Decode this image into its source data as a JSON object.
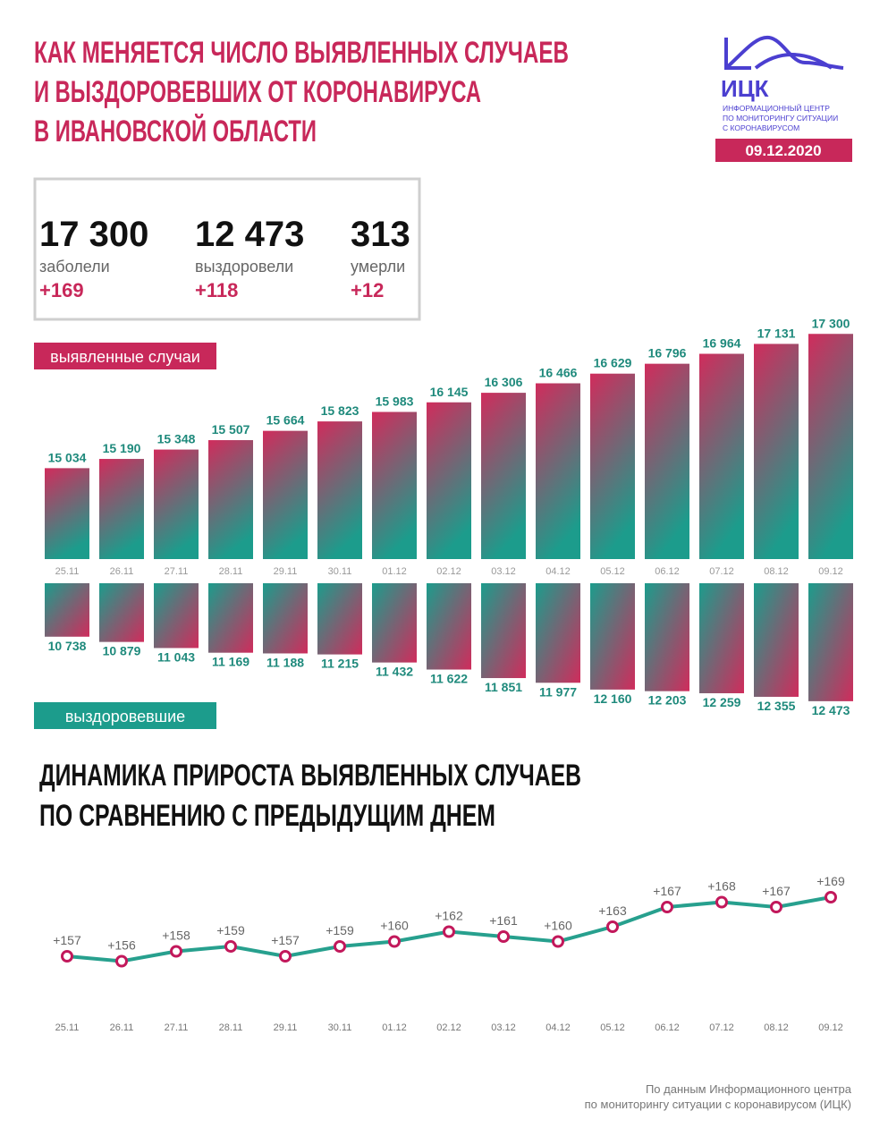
{
  "header": {
    "title": [
      "КАК МЕНЯЕТСЯ ЧИСЛО ВЫЯВЛЕННЫХ СЛУЧАЕВ",
      "И ВЫЗДОРОВЕВШИХ ОТ КОРОНАВИРУСА",
      "В ИВАНОВСКОЙ ОБЛАСТИ"
    ],
    "date": "09.12.2020"
  },
  "logo": {
    "abbr": "ИЦК",
    "lines": [
      "ИНФОРМАЦИОННЫЙ ЦЕНТР",
      "ПО МОНИТОРИНГУ СИТУАЦИИ",
      "С КОРОНАВИРУСОМ"
    ]
  },
  "summary": [
    {
      "value": "17 300",
      "label": "заболели",
      "delta": "+169"
    },
    {
      "value": "12 473",
      "label": "выздоровели",
      "delta": "+118"
    },
    {
      "value": "313",
      "label": "умерли",
      "delta": "+12"
    }
  ],
  "chart_data": [
    {
      "type": "bar",
      "label": "выявленные случаи",
      "label_color": "#c8285a",
      "colors": [
        "#d02c5c",
        "#1c9c8c"
      ],
      "categories": [
        "25.11",
        "26.11",
        "27.11",
        "28.11",
        "29.11",
        "30.11",
        "01.12",
        "02.12",
        "03.12",
        "04.12",
        "05.12",
        "06.12",
        "07.12",
        "08.12",
        "09.12"
      ],
      "values": [
        15034,
        15190,
        15348,
        15507,
        15664,
        15823,
        15983,
        16145,
        16306,
        16466,
        16629,
        16796,
        16964,
        17131,
        17300
      ],
      "value_labels": [
        "15 034",
        "15 190",
        "15 348",
        "15 507",
        "15 664",
        "15 823",
        "15 983",
        "16 145",
        "16 306",
        "16 466",
        "16 629",
        "16 796",
        "16 964",
        "17 131",
        "17 300"
      ],
      "ylim": [
        13500,
        17500
      ]
    },
    {
      "type": "bar",
      "label": "выздоровевшие",
      "label_color": "#1c9c8c",
      "colors": [
        "#1c9c8c",
        "#d02c5c"
      ],
      "yinvert": true,
      "values": [
        10738,
        10879,
        11043,
        11169,
        11188,
        11215,
        11432,
        11622,
        11851,
        11977,
        12160,
        12203,
        12259,
        12355,
        12473
      ],
      "value_labels": [
        "10 738",
        "10 879",
        "11 043",
        "11 169",
        "11 188",
        "11 215",
        "11 432",
        "11 622",
        "11 851",
        "11 977",
        "12 160",
        "12 203",
        "12 259",
        "12 355",
        "12 473"
      ],
      "ylim": [
        9300,
        12500
      ]
    },
    {
      "type": "line",
      "title": [
        "ДИНАМИКА ПРИРОСТА ВЫЯВЛЕННЫХ СЛУЧАЕВ",
        "ПО СРАВНЕНИЮ С ПРЕДЫДУЩИМ ДНЕМ"
      ],
      "color": "#27a08e",
      "marker_color": "#c2185b",
      "categories": [
        "25.11",
        "26.11",
        "27.11",
        "28.11",
        "29.11",
        "30.11",
        "01.12",
        "02.12",
        "03.12",
        "04.12",
        "05.12",
        "06.12",
        "07.12",
        "08.12",
        "09.12"
      ],
      "values": [
        157,
        156,
        158,
        159,
        157,
        159,
        160,
        162,
        161,
        160,
        163,
        167,
        168,
        167,
        169
      ],
      "value_labels": [
        "+157",
        "+156",
        "+158",
        "+159",
        "+157",
        "+159",
        "+160",
        "+162",
        "+161",
        "+160",
        "+163",
        "+167",
        "+168",
        "+167",
        "+169"
      ],
      "ylim": [
        150,
        175
      ]
    }
  ],
  "source": [
    "По данным Информационного центра",
    "по мониторингу ситуации с коронавирусом (ИЦК)"
  ]
}
